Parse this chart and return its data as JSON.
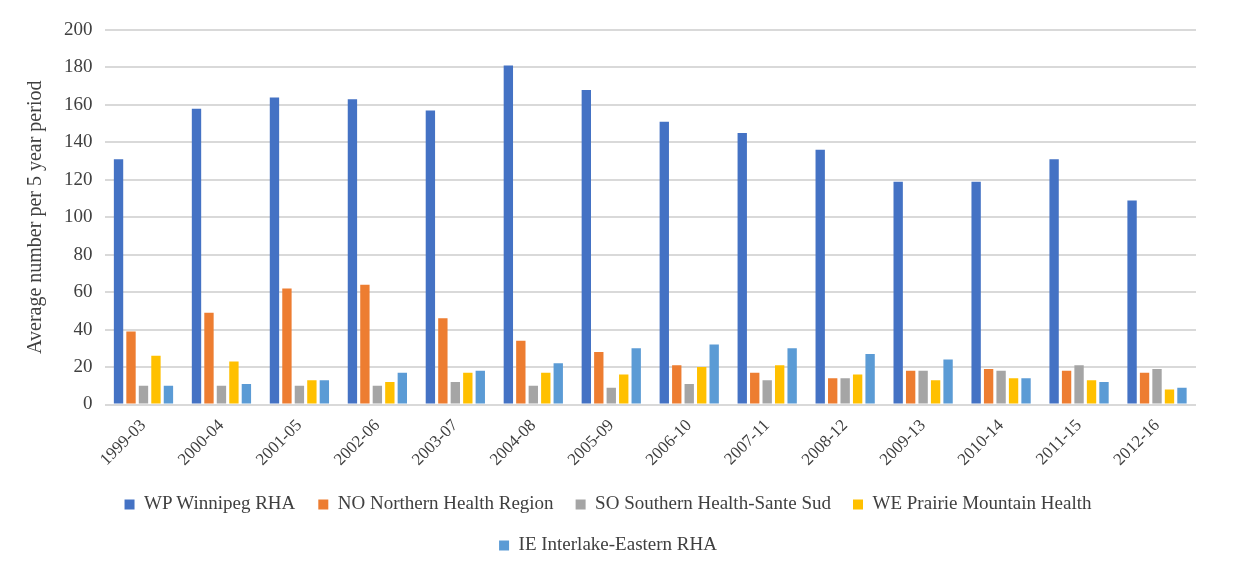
{
  "chart_data": {
    "type": "bar",
    "ylabel": "Average number per 5 year period",
    "categories": [
      "1999-03",
      "2000-04",
      "2001-05",
      "2002-06",
      "2003-07",
      "2004-08",
      "2005-09",
      "2006-10",
      "2007-11",
      "2008-12",
      "2009-13",
      "2010-14",
      "2011-15",
      "2012-16"
    ],
    "series": [
      {
        "name": "WP Winnipeg RHA",
        "color": "#4472c4",
        "values": [
          131,
          158,
          164,
          163,
          157,
          181,
          168,
          151,
          145,
          136,
          119,
          119,
          131,
          109
        ]
      },
      {
        "name": "NO Northern Health Region",
        "color": "#ed7d31",
        "values": [
          39,
          49,
          62,
          64,
          46,
          34,
          28,
          21,
          17,
          14,
          18,
          19,
          18,
          17
        ]
      },
      {
        "name": "SO Southern Health-Sante Sud",
        "color": "#a5a5a5",
        "values": [
          10,
          10,
          10,
          10,
          12,
          10,
          9,
          11,
          13,
          14,
          18,
          18,
          21,
          19
        ]
      },
      {
        "name": "WE Prairie Mountain Health",
        "color": "#ffc000",
        "values": [
          26,
          23,
          13,
          12,
          17,
          17,
          16,
          20,
          21,
          16,
          13,
          14,
          13,
          8
        ]
      },
      {
        "name": "IE Interlake-Eastern RHA",
        "color": "#5b9bd5",
        "values": [
          10,
          11,
          13,
          17,
          18,
          22,
          30,
          32,
          30,
          27,
          24,
          14,
          12,
          9
        ]
      }
    ],
    "ylim": [
      0,
      200
    ],
    "yticks": [
      0,
      20,
      40,
      60,
      80,
      100,
      120,
      140,
      160,
      180,
      200
    ],
    "grid": "y",
    "legend": "bottom"
  }
}
